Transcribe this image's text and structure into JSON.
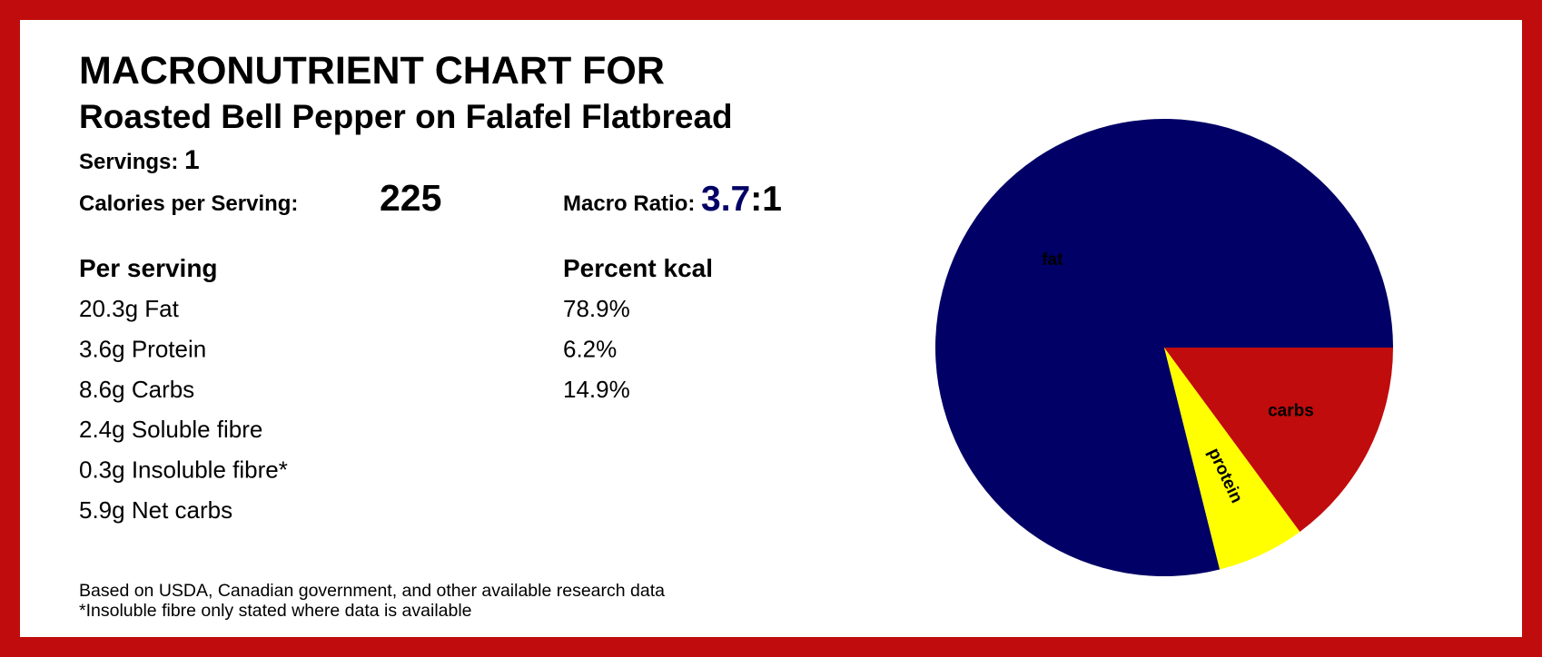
{
  "header": {
    "title": "MACRONUTRIENT CHART FOR",
    "subtitle": "Roasted Bell Pepper on Falafel Flatbread",
    "servings_label": "Servings:",
    "servings_value": "1",
    "calories_label": "Calories per Serving:",
    "calories_value": "225",
    "ratio_label": "Macro Ratio:",
    "ratio_value": "3.7",
    "ratio_suffix": ":1"
  },
  "table": {
    "headers": [
      "Per serving",
      "Percent kcal"
    ],
    "rows": [
      "20.3g Fat",
      "3.6g Protein",
      "8.6g Carbs",
      "2.4g Soluble fibre",
      "0.3g Insoluble fibre*",
      "5.9g Net carbs"
    ]
  },
  "footnotes": [
    "Based on USDA, Canadian government, and other available research data",
    "*Insoluble fibre only stated where data is available"
  ],
  "chart_data": {
    "type": "pie",
    "categories": [
      "fat",
      "protein",
      "carbs"
    ],
    "values": [
      78.9,
      6.2,
      14.9
    ],
    "value_labels": [
      "78.9%",
      "6.2%",
      "14.9%"
    ],
    "colors": [
      "#000066",
      "#ffff00",
      "#c00c0c"
    ],
    "label_colors": [
      "#ffff00",
      "#000066",
      "#ffff00"
    ]
  }
}
